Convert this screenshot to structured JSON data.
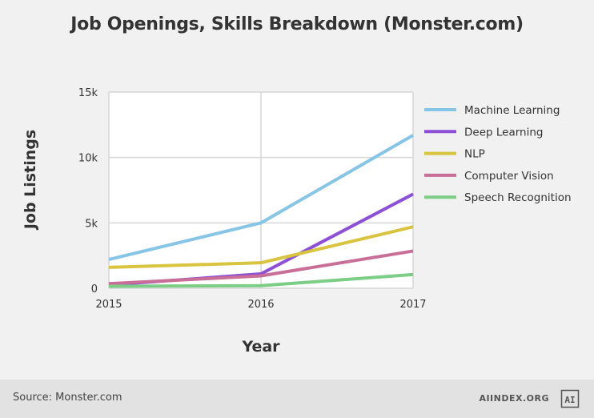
{
  "chart_data": {
    "type": "line",
    "title": "Job Openings, Skills Breakdown (Monster.com)",
    "xlabel": "Year",
    "ylabel": "Job Listings",
    "x": [
      2015,
      2016,
      2017
    ],
    "x_tick_labels": [
      "2015",
      "2016",
      "2017"
    ],
    "ylim": [
      0,
      15000
    ],
    "y_ticks": [
      0,
      5000,
      10000,
      15000
    ],
    "y_tick_labels": [
      "0",
      "5k",
      "10k",
      "15k"
    ],
    "grid": true,
    "legend_position": "right",
    "series": [
      {
        "name": "Machine Learning",
        "color": "#86c5e5",
        "values": [
          2200,
          5000,
          11700
        ]
      },
      {
        "name": "Deep Learning",
        "color": "#8c4fd6",
        "values": [
          250,
          1100,
          7200
        ]
      },
      {
        "name": "NLP",
        "color": "#d8c43f",
        "values": [
          1600,
          1950,
          4700
        ]
      },
      {
        "name": "Computer Vision",
        "color": "#c86e97",
        "values": [
          350,
          950,
          2850
        ]
      },
      {
        "name": "Speech Recognition",
        "color": "#7ccd86",
        "values": [
          150,
          200,
          1050
        ]
      }
    ]
  },
  "footer": {
    "source": "Source: Monster.com",
    "brand": "AIINDEX.ORG",
    "logo_text": "AI"
  }
}
